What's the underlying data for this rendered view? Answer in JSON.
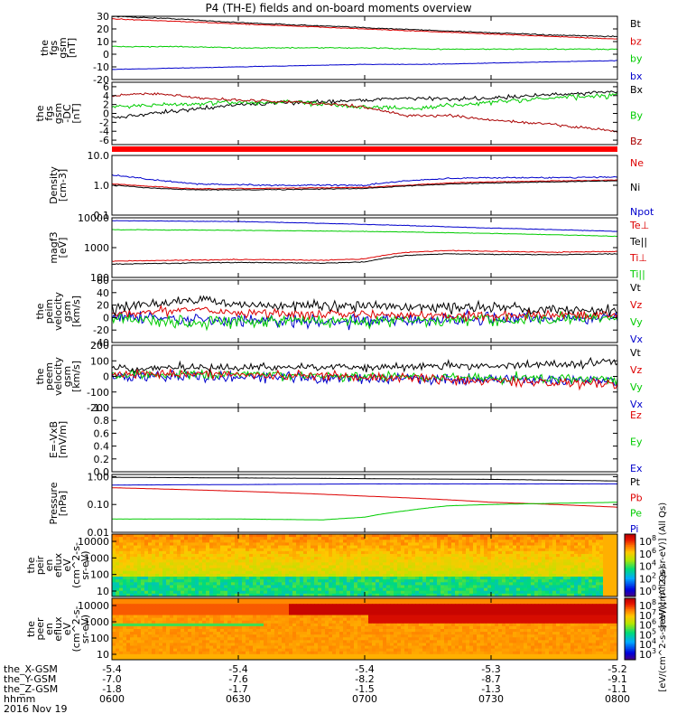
{
  "title": "P4 (TH-E) fields and on-board moments overview",
  "chart_data": [
    {
      "type": "line",
      "panel": "fgs",
      "ylabel": [
        "the",
        "fgs",
        "gsm",
        "[nT]"
      ],
      "ylim": [
        -20,
        30
      ],
      "yticks": [
        "-20",
        "-10",
        "0",
        "10",
        "20",
        "30"
      ],
      "legend": [
        {
          "label": "Bt",
          "color": "#000000"
        },
        {
          "label": "bz",
          "color": "#dd0000"
        },
        {
          "label": "by",
          "color": "#00cc00"
        },
        {
          "label": "bx",
          "color": "#0000cc"
        }
      ],
      "series": [
        {
          "name": "Bt",
          "color": "#000000",
          "x": [
            0,
            15,
            30,
            45,
            60,
            75,
            90,
            105,
            120
          ],
          "y": [
            30,
            28,
            25,
            23,
            21,
            19,
            17,
            15,
            14
          ],
          "noise": 0.4
        },
        {
          "name": "bz",
          "color": "#dd0000",
          "x": [
            0,
            15,
            30,
            45,
            60,
            75,
            90,
            105,
            120
          ],
          "y": [
            28,
            26,
            24,
            22,
            20,
            18,
            16,
            14,
            12
          ],
          "noise": 0.3
        },
        {
          "name": "by",
          "color": "#00cc00",
          "x": [
            0,
            15,
            30,
            45,
            60,
            75,
            90,
            105,
            120
          ],
          "y": [
            6,
            6,
            5,
            5,
            5,
            4,
            4,
            4,
            4
          ],
          "noise": 0.4
        },
        {
          "name": "bx",
          "color": "#0000cc",
          "x": [
            0,
            15,
            30,
            45,
            60,
            75,
            90,
            105,
            120
          ],
          "y": [
            -12,
            -11,
            -10,
            -9,
            -8,
            -8,
            -7,
            -6,
            -5
          ],
          "noise": 0.2
        }
      ]
    },
    {
      "type": "line",
      "panel": "fgs-dc",
      "ylabel": [
        "the",
        "fgs",
        "gsm",
        "-DC",
        "[nT]"
      ],
      "ylim": [
        -7,
        7
      ],
      "yticks": [
        "-6",
        "-4",
        "-2",
        "0",
        "2",
        "4",
        "6"
      ],
      "legend": [
        {
          "label": "Bx",
          "color": "#000000"
        },
        {
          "label": "By",
          "color": "#00cc00"
        },
        {
          "label": "Bz",
          "color": "#aa0000"
        }
      ],
      "series": [
        {
          "name": "Bx",
          "color": "#000000",
          "x": [
            0,
            15,
            30,
            45,
            60,
            70,
            80,
            90,
            105,
            120
          ],
          "y": [
            -1,
            0.5,
            2,
            2.5,
            3,
            3.5,
            3.2,
            3.5,
            4.2,
            5
          ],
          "noise": 0.4
        },
        {
          "name": "By",
          "color": "#00cc00",
          "x": [
            0,
            15,
            30,
            45,
            60,
            70,
            80,
            90,
            105,
            120
          ],
          "y": [
            1.5,
            2,
            2.5,
            2.5,
            1.5,
            1,
            1.8,
            2.5,
            3.5,
            4
          ],
          "noise": 0.5
        },
        {
          "name": "Bz",
          "color": "#aa0000",
          "x": [
            0,
            10,
            20,
            30,
            45,
            60,
            70,
            80,
            90,
            105,
            120
          ],
          "y": [
            4,
            4.5,
            3.5,
            3,
            2.5,
            1.5,
            -0.5,
            -0.5,
            -1.5,
            -2.5,
            -4
          ],
          "noise": 0.3
        }
      ]
    },
    {
      "type": "line",
      "panel": "density",
      "scale": "log",
      "ylabel": [
        "Density",
        "[cm-3]"
      ],
      "ylim": [
        0.1,
        10
      ],
      "yticks": [
        "0.1",
        "1.0",
        "10.0"
      ],
      "legend": [
        {
          "label": "Ne",
          "color": "#dd0000"
        },
        {
          "label": "Ni",
          "color": "#000000"
        },
        {
          "label": "Npot",
          "color": "#0000cc"
        }
      ],
      "series": [
        {
          "name": "Ne",
          "color": "#dd0000",
          "x": [
            0,
            10,
            20,
            40,
            60,
            70,
            80,
            90,
            105,
            120
          ],
          "y": [
            1.1,
            0.9,
            0.75,
            0.8,
            0.85,
            1.0,
            1.2,
            1.3,
            1.4,
            1.5
          ],
          "noise": 0.03
        },
        {
          "name": "Ni",
          "color": "#000000",
          "x": [
            0,
            10,
            20,
            40,
            60,
            70,
            80,
            90,
            105,
            120
          ],
          "y": [
            1.0,
            0.8,
            0.7,
            0.72,
            0.78,
            0.95,
            1.1,
            1.2,
            1.3,
            1.4
          ],
          "noise": 0.03
        },
        {
          "name": "Npot",
          "color": "#0000cc",
          "x": [
            0,
            10,
            20,
            40,
            60,
            70,
            80,
            90,
            105,
            120
          ],
          "y": [
            2.2,
            1.5,
            1.1,
            1.0,
            1.0,
            1.4,
            1.7,
            1.8,
            1.8,
            1.9
          ],
          "noise": 0.05
        }
      ]
    },
    {
      "type": "line",
      "panel": "temperature",
      "scale": "log",
      "ylabel": [
        "magf3",
        "[eV]"
      ],
      "ylim": [
        100,
        10000
      ],
      "yticks": [
        "100",
        "1000",
        "10000"
      ],
      "legend": [
        {
          "label": "Te⊥",
          "color": "#dd0000"
        },
        {
          "label": "Te||",
          "color": "#000000"
        },
        {
          "label": "Ti⊥",
          "color": "#dd0000"
        },
        {
          "label": "Ti||",
          "color": "#00cc00"
        }
      ],
      "series": [
        {
          "name": "Ti⊥",
          "color": "#0000cc",
          "x": [
            0,
            30,
            60,
            90,
            120
          ],
          "y": [
            8000,
            7500,
            6000,
            4500,
            3500
          ],
          "noise": 0.02
        },
        {
          "name": "Ti||",
          "color": "#00cc00",
          "x": [
            0,
            30,
            60,
            90,
            120
          ],
          "y": [
            4000,
            3800,
            3500,
            3000,
            2400
          ],
          "noise": 0.02
        },
        {
          "name": "Te⊥",
          "color": "#dd0000",
          "x": [
            0,
            30,
            50,
            60,
            70,
            80,
            90,
            105,
            120
          ],
          "y": [
            350,
            400,
            380,
            420,
            700,
            800,
            750,
            700,
            750
          ],
          "noise": 0.03
        },
        {
          "name": "Te||",
          "color": "#000000",
          "x": [
            0,
            30,
            50,
            60,
            70,
            80,
            90,
            105,
            120
          ],
          "y": [
            280,
            320,
            300,
            330,
            550,
            620,
            600,
            580,
            620
          ],
          "noise": 0.03
        }
      ]
    },
    {
      "type": "line",
      "panel": "peim-velocity",
      "ylabel": [
        "the",
        "peim",
        "velocity",
        "gsm",
        "[km/s]"
      ],
      "ylim": [
        -40,
        60
      ],
      "yticks": [
        "-40",
        "-20",
        "0",
        "20",
        "40",
        "60"
      ],
      "legend": [
        {
          "label": "Vt",
          "color": "#000000"
        },
        {
          "label": "Vz",
          "color": "#dd0000"
        },
        {
          "label": "Vy",
          "color": "#00cc00"
        },
        {
          "label": "Vx",
          "color": "#0000cc"
        }
      ],
      "series": [
        {
          "name": "Vx",
          "color": "#0000cc",
          "x": [
            0,
            30,
            60,
            90,
            120
          ],
          "y": [
            0,
            -5,
            -5,
            -2,
            0
          ],
          "noise": 10
        },
        {
          "name": "Vy",
          "color": "#00cc00",
          "x": [
            0,
            20,
            30,
            60,
            90,
            120
          ],
          "y": [
            0,
            -10,
            -5,
            -5,
            -5,
            0
          ],
          "noise": 10
        },
        {
          "name": "Vz",
          "color": "#dd0000",
          "x": [
            0,
            20,
            30,
            60,
            90,
            120
          ],
          "y": [
            5,
            15,
            8,
            5,
            3,
            5
          ],
          "noise": 7
        },
        {
          "name": "Vt",
          "color": "#000000",
          "x": [
            0,
            20,
            30,
            60,
            90,
            120
          ],
          "y": [
            15,
            30,
            20,
            18,
            15,
            12
          ],
          "noise": 8
        }
      ]
    },
    {
      "type": "line",
      "panel": "peem-velocity",
      "ylabel": [
        "the",
        "peem",
        "velocity",
        "gsm",
        "[km/s]"
      ],
      "ylim": [
        -200,
        200
      ],
      "yticks": [
        "-200",
        "-100",
        "0",
        "100",
        "200"
      ],
      "legend": [
        {
          "label": "Vt",
          "color": "#000000"
        },
        {
          "label": "Vz",
          "color": "#dd0000"
        },
        {
          "label": "Vy",
          "color": "#00cc00"
        },
        {
          "label": "Vx",
          "color": "#0000cc"
        }
      ],
      "series": [
        {
          "name": "Vx",
          "color": "#0000cc",
          "x": [
            0,
            30,
            60,
            90,
            120
          ],
          "y": [
            0,
            0,
            -10,
            -20,
            -25
          ],
          "noise": 35
        },
        {
          "name": "Vy",
          "color": "#00cc00",
          "x": [
            0,
            30,
            60,
            90,
            120
          ],
          "y": [
            10,
            10,
            0,
            -10,
            -15
          ],
          "noise": 30
        },
        {
          "name": "Vz",
          "color": "#dd0000",
          "x": [
            0,
            30,
            60,
            90,
            120
          ],
          "y": [
            20,
            10,
            0,
            -30,
            -50
          ],
          "noise": 30
        },
        {
          "name": "Vt",
          "color": "#000000",
          "x": [
            0,
            30,
            60,
            90,
            120
          ],
          "y": [
            50,
            60,
            60,
            70,
            90
          ],
          "noise": 25
        }
      ]
    },
    {
      "type": "line",
      "panel": "efield",
      "ylabel": [
        "E=-VxB",
        "[mV/m]"
      ],
      "ylim": [
        0,
        1
      ],
      "yticks": [
        "0.0",
        "0.2",
        "0.4",
        "0.6",
        "0.8",
        "1.0"
      ],
      "legend": [
        {
          "label": "Ez",
          "color": "#dd0000"
        },
        {
          "label": "Ey",
          "color": "#00cc00"
        },
        {
          "label": "Ex",
          "color": "#0000cc"
        }
      ],
      "series": []
    },
    {
      "type": "line",
      "panel": "pressure",
      "scale": "log",
      "ylabel": [
        "Pressure",
        "[nPa]"
      ],
      "ylim": [
        0.01,
        1.2
      ],
      "yticks": [
        "0.01",
        "0.10",
        "1.00"
      ],
      "legend": [
        {
          "label": "Pt",
          "color": "#000000"
        },
        {
          "label": "Pb",
          "color": "#dd0000"
        },
        {
          "label": "Pe",
          "color": "#00cc00"
        },
        {
          "label": "Pi",
          "color": "#0000cc"
        }
      ],
      "series": [
        {
          "name": "Pt",
          "color": "#000000",
          "x": [
            0,
            30,
            60,
            90,
            120
          ],
          "y": [
            0.95,
            0.9,
            0.85,
            0.8,
            0.7
          ],
          "noise": 0.005
        },
        {
          "name": "Pi",
          "color": "#0000cc",
          "x": [
            0,
            30,
            60,
            90,
            120
          ],
          "y": [
            0.5,
            0.52,
            0.55,
            0.55,
            0.55
          ],
          "noise": 0.005
        },
        {
          "name": "Pb",
          "color": "#dd0000",
          "x": [
            0,
            30,
            60,
            90,
            120
          ],
          "y": [
            0.4,
            0.3,
            0.2,
            0.12,
            0.08
          ],
          "noise": 0.004
        },
        {
          "name": "Pe",
          "color": "#00cc00",
          "x": [
            0,
            30,
            50,
            60,
            70,
            80,
            90,
            120
          ],
          "y": [
            0.03,
            0.03,
            0.028,
            0.035,
            0.06,
            0.09,
            0.1,
            0.12
          ],
          "noise": 0.005
        }
      ]
    },
    {
      "type": "heatmap",
      "panel": "peir",
      "ylabel": [
        "the",
        "peir",
        "en",
        "eflux",
        "eV",
        "(cm^2-s-",
        "sr-eV)"
      ],
      "yticks": [
        "10",
        "100",
        "1000",
        "10000"
      ],
      "colorbar": {
        "ticks": [
          "10^8",
          "10^6",
          "10^4",
          "10^2",
          "10^0"
        ],
        "label": "[eV/(cm^2-s-sr-eV)] (All Qs)"
      }
    },
    {
      "type": "heatmap",
      "panel": "peer",
      "ylabel": [
        "the",
        "peer",
        "en",
        "eflux",
        "eV",
        "(cm^2-s-",
        "sr-eV)"
      ],
      "yticks": [
        "10",
        "100",
        "1000",
        "10000"
      ],
      "colorbar": {
        "ticks": [
          "10^8",
          "10^7",
          "10^6",
          "10^5",
          "10^4",
          "10^3"
        ],
        "label": "[eV/(cm^2-s-sr-eV)] (All Qs)"
      }
    }
  ],
  "xaxis": {
    "rows": [
      {
        "label": "the_X-GSM",
        "values": [
          "-5.4",
          "-5.4",
          "-5.4",
          "-5.3",
          "-5.2"
        ]
      },
      {
        "label": "the_Y-GSM",
        "values": [
          "-7.0",
          "-7.6",
          "-8.2",
          "-8.7",
          "-9.1"
        ]
      },
      {
        "label": "the_Z-GSM",
        "values": [
          "-1.8",
          "-1.7",
          "-1.5",
          "-1.3",
          "-1.1"
        ]
      },
      {
        "label": "hhmm",
        "values": [
          "0600",
          "0630",
          "0700",
          "0730",
          "0800"
        ]
      }
    ],
    "date": "2016 Nov 19"
  }
}
